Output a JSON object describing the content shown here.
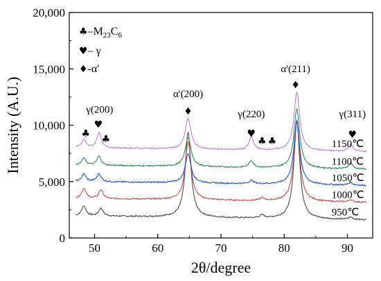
{
  "chart_data": {
    "type": "line",
    "xlabel": "2θ/degree",
    "ylabel": "Intensity (A.U.)",
    "xlim": [
      46,
      94
    ],
    "ylim": [
      0,
      20000
    ],
    "x_ticks": [
      "50",
      "60",
      "70",
      "80",
      "90"
    ],
    "y_ticks": [
      "0",
      "5,000",
      "10,000",
      "15,000",
      "20,000"
    ],
    "legend": [
      {
        "symbol": "♣",
        "text": "–M",
        "sub": "23",
        "text2": "C",
        "sub2": "6"
      },
      {
        "symbol": "♥",
        "text": "– γ"
      },
      {
        "symbol": "♦",
        "text": "-α'"
      }
    ],
    "series": [
      {
        "name": "950℃",
        "color": "#4a4a4a",
        "baseline": 1600,
        "peaks": [
          [
            48.3,
            900
          ],
          [
            51.0,
            700
          ],
          [
            64.8,
            7500
          ],
          [
            76.5,
            250
          ],
          [
            82.0,
            8700
          ],
          [
            90.5,
            200
          ]
        ]
      },
      {
        "name": "1000℃",
        "color": "#c0504d",
        "baseline": 3150,
        "peaks": [
          [
            48.3,
            900
          ],
          [
            51.0,
            800
          ],
          [
            64.8,
            5200
          ],
          [
            76.5,
            250
          ],
          [
            82.0,
            7200
          ],
          [
            90.5,
            200
          ]
        ]
      },
      {
        "name": "1050℃",
        "color": "#1f4fd8",
        "baseline": 4650,
        "peaks": [
          [
            48.3,
            650
          ],
          [
            50.7,
            700
          ],
          [
            64.8,
            2600
          ],
          [
            74.8,
            300
          ],
          [
            82.0,
            5700
          ],
          [
            90.5,
            250
          ]
        ]
      },
      {
        "name": "1100℃",
        "color": "#2e8b57",
        "baseline": 6100,
        "peaks": [
          [
            48.3,
            600
          ],
          [
            50.7,
            800
          ],
          [
            64.8,
            2600
          ],
          [
            74.8,
            600
          ],
          [
            82.0,
            5300
          ],
          [
            90.5,
            500
          ]
        ]
      },
      {
        "name": "1150℃",
        "color": "#c07ddf",
        "baseline": 7650,
        "peaks": [
          [
            48.3,
            700
          ],
          [
            50.7,
            1400
          ],
          [
            64.8,
            2700
          ],
          [
            74.8,
            1200
          ],
          [
            82.0,
            5200
          ],
          [
            90.5,
            650
          ]
        ]
      }
    ],
    "annotations": [
      {
        "text": "γ(200)",
        "x": 50.8,
        "y": 11100
      },
      {
        "text": "α'(200)",
        "x": 64.8,
        "y": 12500
      },
      {
        "text": "γ(220)",
        "x": 74.8,
        "y": 10700
      },
      {
        "text": "α'(211)",
        "x": 81.8,
        "y": 14700
      },
      {
        "text": "γ(311)",
        "x": 90.8,
        "y": 10700
      }
    ],
    "markers": [
      {
        "symbol": "♣",
        "x": 48.6,
        "y": 9000
      },
      {
        "symbol": "♥",
        "x": 50.6,
        "y": 9800
      },
      {
        "symbol": "♣",
        "x": 51.8,
        "y": 8500
      },
      {
        "symbol": "♦",
        "x": 64.8,
        "y": 10950
      },
      {
        "symbol": "♥",
        "x": 74.8,
        "y": 9000
      },
      {
        "symbol": "♣",
        "x": 76.5,
        "y": 8300
      },
      {
        "symbol": "♣",
        "x": 78.1,
        "y": 8300
      },
      {
        "symbol": "♦",
        "x": 81.8,
        "y": 13300
      },
      {
        "symbol": "♥",
        "x": 90.8,
        "y": 8900
      }
    ]
  }
}
